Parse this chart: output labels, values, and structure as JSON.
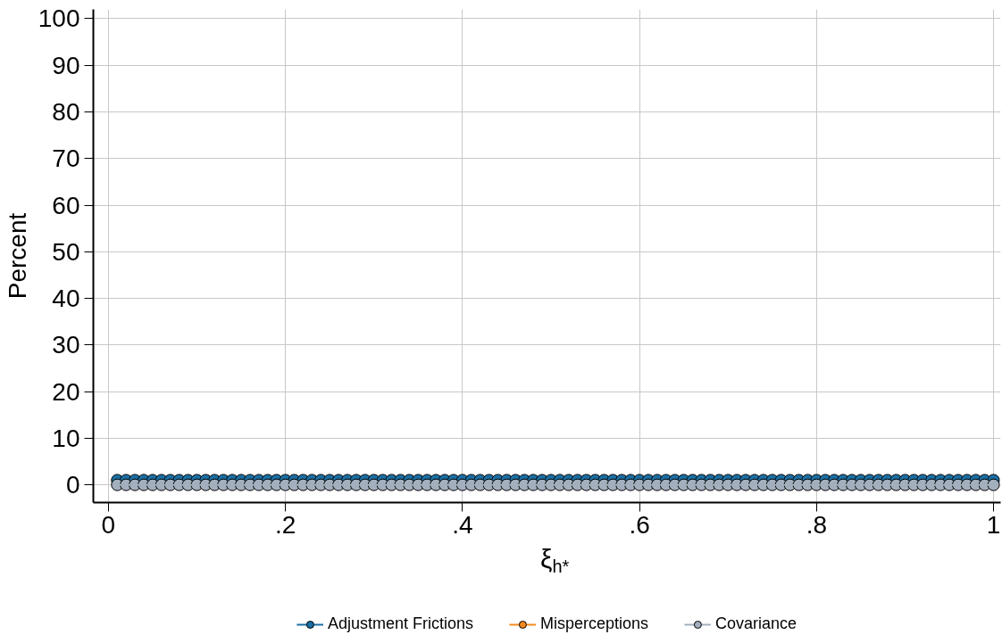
{
  "chart_data": {
    "type": "line",
    "xlabel": "ξ$_{h*}$",
    "ylabel": "Percent",
    "x": [
      0.01,
      0.02,
      0.03,
      0.04,
      0.05,
      0.06,
      0.07,
      0.08,
      0.09,
      0.1,
      0.11,
      0.12,
      0.13,
      0.14,
      0.15,
      0.16,
      0.17,
      0.18,
      0.19,
      0.2,
      0.21,
      0.22,
      0.23,
      0.24,
      0.25,
      0.26,
      0.27,
      0.28,
      0.29,
      0.3,
      0.31,
      0.32,
      0.33,
      0.34,
      0.35,
      0.36,
      0.37,
      0.38,
      0.39,
      0.4,
      0.41,
      0.42,
      0.43,
      0.44,
      0.45,
      0.46,
      0.47,
      0.48,
      0.49,
      0.5,
      0.51,
      0.52,
      0.53,
      0.54,
      0.55,
      0.56,
      0.57,
      0.58,
      0.59,
      0.6,
      0.61,
      0.62,
      0.63,
      0.64,
      0.65,
      0.66,
      0.67,
      0.68,
      0.69,
      0.7,
      0.71,
      0.72,
      0.73,
      0.74,
      0.75,
      0.76,
      0.77,
      0.78,
      0.79,
      0.8,
      0.81,
      0.82,
      0.83,
      0.84,
      0.85,
      0.86,
      0.87,
      0.88,
      0.89,
      0.9,
      0.91,
      0.92,
      0.93,
      0.94,
      0.95,
      0.96,
      0.97,
      0.98,
      0.99,
      1.0
    ],
    "series": [
      {
        "name": "Adjustment Frictions",
        "color": "#1a6fa3",
        "values": [
          1,
          1,
          1,
          1,
          1,
          1,
          1,
          1,
          1,
          1,
          1,
          1,
          1,
          1,
          1,
          1,
          1,
          1,
          1,
          1,
          1,
          1,
          1,
          1,
          1,
          1,
          1,
          1,
          1,
          1,
          1,
          1,
          1,
          1,
          1,
          1,
          1,
          1,
          1,
          1,
          1,
          1,
          1,
          1,
          1,
          1,
          1,
          1,
          1,
          1,
          1,
          1,
          1,
          1,
          1,
          1,
          1,
          1,
          1,
          1,
          1,
          1,
          1,
          1,
          1,
          1,
          1,
          1,
          1,
          1,
          1,
          1,
          1,
          1,
          1,
          1,
          1,
          1,
          1,
          1,
          1,
          1,
          1,
          1,
          1,
          1,
          1,
          1,
          1,
          1,
          1,
          1,
          1,
          1,
          1,
          1,
          1,
          1,
          1,
          1
        ]
      },
      {
        "name": "Misperceptions",
        "color": "#f28a1e",
        "values": [
          null,
          null,
          null,
          null,
          null,
          null,
          null,
          null,
          null,
          null,
          null,
          null,
          null,
          null,
          null,
          null,
          null,
          null,
          null,
          null,
          null,
          null,
          null,
          null,
          null,
          null,
          null,
          null,
          null,
          null,
          null,
          null,
          null,
          null,
          null,
          null,
          null,
          null,
          null,
          null,
          null,
          null,
          null,
          null,
          null,
          null,
          null,
          null,
          null,
          null,
          null,
          null,
          null,
          null,
          null,
          null,
          null,
          null,
          null,
          null,
          null,
          null,
          null,
          null,
          null,
          null,
          null,
          null,
          null,
          null,
          null,
          null,
          null,
          null,
          null,
          null,
          null,
          null,
          null,
          null,
          null,
          null,
          null,
          null,
          null,
          null,
          null,
          null,
          null,
          null,
          null,
          null,
          null,
          null,
          null,
          null,
          null,
          null,
          null,
          null
        ]
      },
      {
        "name": "Covariance",
        "color": "#a3afbd",
        "values": [
          0,
          0,
          0,
          0,
          0,
          0,
          0,
          0,
          0,
          0,
          0,
          0,
          0,
          0,
          0,
          0,
          0,
          0,
          0,
          0,
          0,
          0,
          0,
          0,
          0,
          0,
          0,
          0,
          0,
          0,
          0,
          0,
          0,
          0,
          0,
          0,
          0,
          0,
          0,
          0,
          0,
          0,
          0,
          0,
          0,
          0,
          0,
          0,
          0,
          0,
          0,
          0,
          0,
          0,
          0,
          0,
          0,
          0,
          0,
          0,
          0,
          0,
          0,
          0,
          0,
          0,
          0,
          0,
          0,
          0,
          0,
          0,
          0,
          0,
          0,
          0,
          0,
          0,
          0,
          0,
          0,
          0,
          0,
          0,
          0,
          0,
          0,
          0,
          0,
          0,
          0,
          0,
          0,
          0,
          0,
          0,
          0,
          0,
          0,
          0
        ]
      }
    ],
    "xlim": [
      -0.017,
      1.008
    ],
    "ylim": [
      -3.8,
      102
    ],
    "xticks": [
      0,
      {
        "value": 0.2,
        "label": ".2"
      },
      {
        "value": 0.4,
        "label": ".4"
      },
      {
        "value": 0.6,
        "label": ".6"
      },
      {
        "value": 0.8,
        "label": ".8"
      },
      1
    ],
    "yticks": [
      0,
      10,
      20,
      30,
      40,
      50,
      60,
      70,
      80,
      90,
      100
    ],
    "grid": true,
    "legend": "bottom",
    "marker": "circle",
    "line_style": "solid"
  }
}
